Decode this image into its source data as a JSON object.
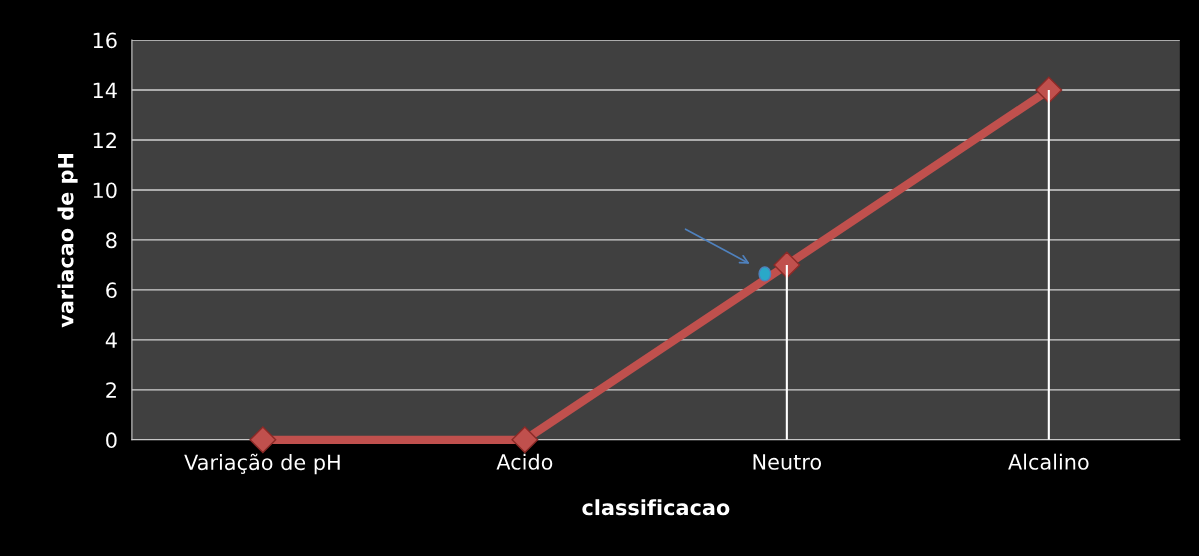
{
  "chart_data": {
    "type": "line",
    "xlabel": "classificacao",
    "ylabel": "variacao de pH",
    "categories": [
      "Variação de pH",
      "Acido",
      "Neutro",
      "Alcalino"
    ],
    "series": [
      {
        "type": "bar",
        "color": "#ffffff",
        "values": [
          0,
          0,
          7,
          14
        ]
      },
      {
        "color": "#c0504d",
        "values": [
          0,
          0,
          7,
          14
        ]
      }
    ],
    "ylim": [
      0,
      16
    ],
    "yticks": [
      0,
      2,
      4,
      6,
      8,
      10,
      12,
      14,
      16
    ],
    "grid": "y",
    "marker": "diamond",
    "line_style": "solid",
    "legend": false
  }
}
